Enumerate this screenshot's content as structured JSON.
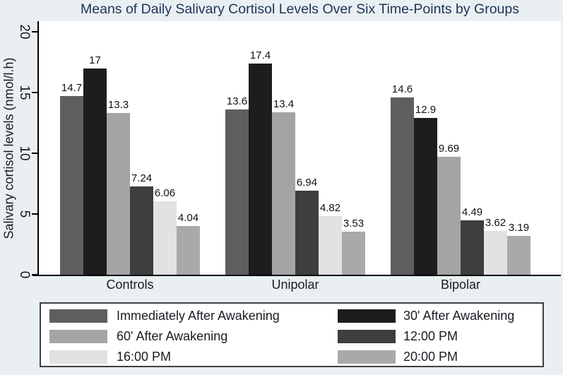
{
  "figure": {
    "background_color": "#e9eff2",
    "plot_background_color": "#ffffff",
    "title_color": "#1f3357",
    "axis_color": "#000000",
    "legend_border_color": "#3f3f3f"
  },
  "chart_data": {
    "type": "bar",
    "title": "Means of Daily Salivary Cortisol Levels Over Six Time-Points by Groups",
    "xlabel": "",
    "ylabel": "Salivary cortisol levels (nmol/l.h)",
    "categories": [
      "Controls",
      "Unipolar",
      "Bipolar"
    ],
    "series": [
      {
        "name": "Immediately After Awakening",
        "color": "#5e5e5e",
        "values": [
          14.7,
          13.6,
          14.6
        ]
      },
      {
        "name": "30' After Awakening",
        "color": "#1d1d1d",
        "values": [
          17,
          17.4,
          12.9
        ]
      },
      {
        "name": "60' After Awakening",
        "color": "#a4a4a4",
        "values": [
          13.3,
          13.4,
          9.69
        ]
      },
      {
        "name": "12:00 PM",
        "color": "#3e3e3e",
        "values": [
          7.24,
          6.94,
          4.49
        ]
      },
      {
        "name": "16:00 PM",
        "color": "#e2e2e2",
        "values": [
          6.06,
          4.82,
          3.62
        ]
      },
      {
        "name": "20:00 PM",
        "color": "#a9a9a9",
        "values": [
          4.04,
          3.53,
          3.19
        ]
      }
    ],
    "yticks": [
      0,
      5,
      10,
      15,
      20
    ],
    "ylim": [
      0,
      20.8
    ],
    "ytick_label_rotation_deg": 90,
    "grid": false,
    "bar_value_labels": true,
    "legend_position": "bottom",
    "legend_columns": 2
  }
}
